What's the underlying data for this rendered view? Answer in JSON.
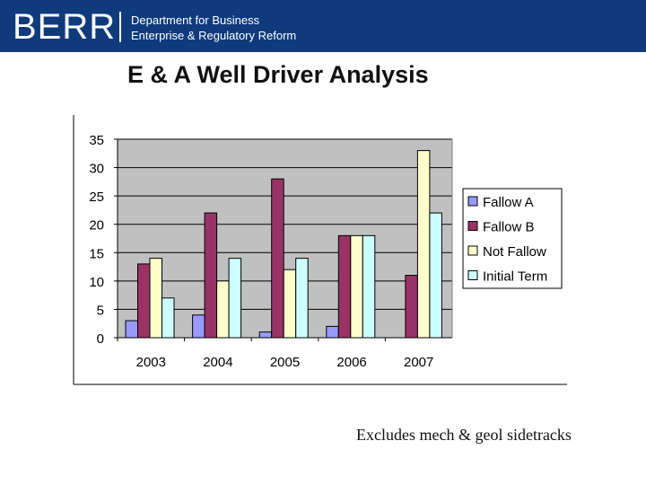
{
  "header": {
    "logo_text": "BERR",
    "dept_line1": "Department for Business",
    "dept_line2": "Enterprise & Regulatory Reform",
    "background_color": "#0f3b7d"
  },
  "slide": {
    "title": "E & A Well Driver Analysis",
    "footnote": "Excludes mech & geol sidetracks"
  },
  "chart_data": {
    "type": "bar",
    "title": "",
    "xlabel": "",
    "ylabel": "",
    "categories": [
      "2003",
      "2004",
      "2005",
      "2006",
      "2007"
    ],
    "ylim": [
      0,
      35
    ],
    "yticks": [
      0,
      5,
      10,
      15,
      20,
      25,
      30,
      35
    ],
    "grid": true,
    "legend_position": "right",
    "plot_background": "#c0c0c0",
    "series": [
      {
        "name": "Fallow A",
        "color": "#9999ff",
        "values": [
          3,
          4,
          1,
          2,
          0
        ]
      },
      {
        "name": "Fallow B",
        "color": "#993366",
        "values": [
          13,
          22,
          28,
          18,
          11
        ]
      },
      {
        "name": "Not Fallow",
        "color": "#ffffcc",
        "values": [
          14,
          10,
          12,
          18,
          33
        ]
      },
      {
        "name": "Initial Term",
        "color": "#ccffff",
        "values": [
          7,
          14,
          14,
          18,
          22
        ]
      }
    ]
  }
}
